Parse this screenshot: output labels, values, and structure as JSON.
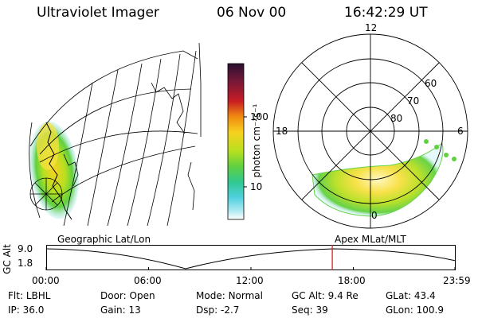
{
  "header": {
    "instrument": "Ultraviolet Imager",
    "date": "06 Nov 00",
    "time": "16:42:29 UT"
  },
  "map_panel": {
    "caption": "Geographic Lat/Lon"
  },
  "colorbar": {
    "unit": "photon cm⁻²s⁻¹",
    "ticks": [
      {
        "label": "100",
        "value": 100
      },
      {
        "label": "10",
        "value": 10
      }
    ],
    "colors": [
      "#2a1030",
      "#7a1838",
      "#c81c24",
      "#f08a10",
      "#f8d020",
      "#b8e020",
      "#60d040",
      "#30c890",
      "#50d0e0",
      "#a8e8f0",
      "#ffffff"
    ]
  },
  "polar_panel": {
    "caption": "Apex MLat/MLT",
    "mlt_labels": {
      "top": "12",
      "left": "18",
      "right": "6",
      "bottom": "0"
    },
    "lat_labels": [
      "60",
      "70",
      "80"
    ]
  },
  "orbit_plot": {
    "ylabel": "GC Alt",
    "yticks": [
      "9.0",
      "1.8"
    ],
    "xticks": [
      "00:00",
      "06:00",
      "12:00",
      "18:00",
      "23:59"
    ],
    "current_time_fraction": 0.7
  },
  "info": {
    "row1": [
      {
        "label": "Flt:",
        "value": "LBHL"
      },
      {
        "label": "Door:",
        "value": "Open"
      },
      {
        "label": "Mode:",
        "value": "Normal"
      },
      {
        "label": "GC Alt:",
        "value": "9.4 Re"
      },
      {
        "label": "GLat:",
        "value": "43.4"
      }
    ],
    "row2": [
      {
        "label": "IP:",
        "value": "36.0"
      },
      {
        "label": "Gain:",
        "value": "13"
      },
      {
        "label": "Dsp:",
        "value": "-2.7"
      },
      {
        "label": "Seq:",
        "value": "39"
      },
      {
        "label": "GLon:",
        "value": "100.9"
      }
    ]
  }
}
